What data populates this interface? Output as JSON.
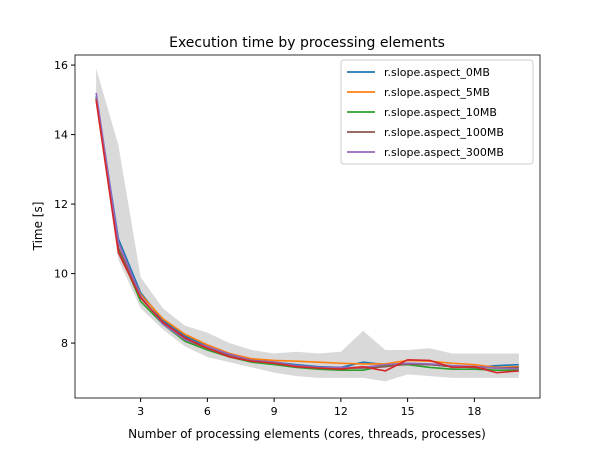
{
  "chart_data": {
    "type": "line",
    "title": "Execution time by processing elements",
    "xlabel": "Number of processing elements (cores, threads, processes)",
    "ylabel": "Time [s]",
    "xlim": [
      0.05,
      20.95
    ],
    "ylim": [
      6.42,
      16.29
    ],
    "xticks": [
      3,
      6,
      9,
      12,
      15,
      18
    ],
    "yticks": [
      8,
      10,
      12,
      14,
      16
    ],
    "grid": false,
    "legend_position": "top-right",
    "x": [
      1,
      2,
      3,
      4,
      5,
      6,
      7,
      8,
      9,
      10,
      11,
      12,
      13,
      14,
      15,
      16,
      17,
      18,
      19,
      20
    ],
    "band": {
      "color": "#808080",
      "upper": [
        15.9,
        13.7,
        9.9,
        9.0,
        8.5,
        8.3,
        8.0,
        7.8,
        7.7,
        7.75,
        7.7,
        7.75,
        8.35,
        7.8,
        7.8,
        7.85,
        7.7,
        7.7,
        7.7,
        7.7
      ],
      "lower": [
        14.8,
        10.4,
        9.0,
        8.4,
        7.9,
        7.6,
        7.45,
        7.3,
        7.15,
        7.05,
        7.0,
        7.0,
        7.0,
        6.9,
        7.1,
        7.05,
        7.0,
        7.0,
        7.0,
        7.0
      ]
    },
    "series": [
      {
        "name": "r.slope.aspect_0MB",
        "color": "#1f77b4",
        "values": [
          15.1,
          11.0,
          9.45,
          8.65,
          8.2,
          7.9,
          7.7,
          7.52,
          7.45,
          7.38,
          7.32,
          7.3,
          7.45,
          7.38,
          7.4,
          7.38,
          7.32,
          7.3,
          7.35,
          7.38
        ]
      },
      {
        "name": "r.slope.aspect_5MB",
        "color": "#ff7f0e",
        "values": [
          15.0,
          10.7,
          9.4,
          8.7,
          8.25,
          7.95,
          7.7,
          7.55,
          7.5,
          7.48,
          7.45,
          7.42,
          7.4,
          7.4,
          7.5,
          7.48,
          7.42,
          7.38,
          7.3,
          7.32
        ]
      },
      {
        "name": "r.slope.aspect_10MB",
        "color": "#2ca02c",
        "values": [
          15.05,
          10.7,
          9.2,
          8.55,
          8.05,
          7.8,
          7.6,
          7.45,
          7.38,
          7.3,
          7.25,
          7.22,
          7.22,
          7.35,
          7.38,
          7.3,
          7.25,
          7.25,
          7.22,
          7.22
        ]
      },
      {
        "name": "r.slope.aspect_100MB",
        "color": "#8c564b",
        "values": [
          15.05,
          10.75,
          9.3,
          8.6,
          8.1,
          7.85,
          7.65,
          7.48,
          7.42,
          7.35,
          7.3,
          7.28,
          7.28,
          7.32,
          7.4,
          7.38,
          7.32,
          7.3,
          7.28,
          7.3
        ]
      },
      {
        "name": "r.slope.aspect_300MB",
        "color": "#9467bd",
        "values": [
          15.2,
          10.9,
          9.35,
          8.55,
          8.1,
          7.9,
          7.68,
          7.5,
          7.45,
          7.35,
          7.3,
          7.3,
          7.3,
          7.38,
          7.42,
          7.4,
          7.35,
          7.33,
          7.28,
          7.26
        ]
      },
      {
        "color": "#d62728",
        "values": [
          15.0,
          10.6,
          9.3,
          8.6,
          8.15,
          7.85,
          7.6,
          7.48,
          7.42,
          7.32,
          7.28,
          7.25,
          7.32,
          7.2,
          7.52,
          7.5,
          7.3,
          7.32,
          7.15,
          7.2
        ]
      }
    ]
  }
}
